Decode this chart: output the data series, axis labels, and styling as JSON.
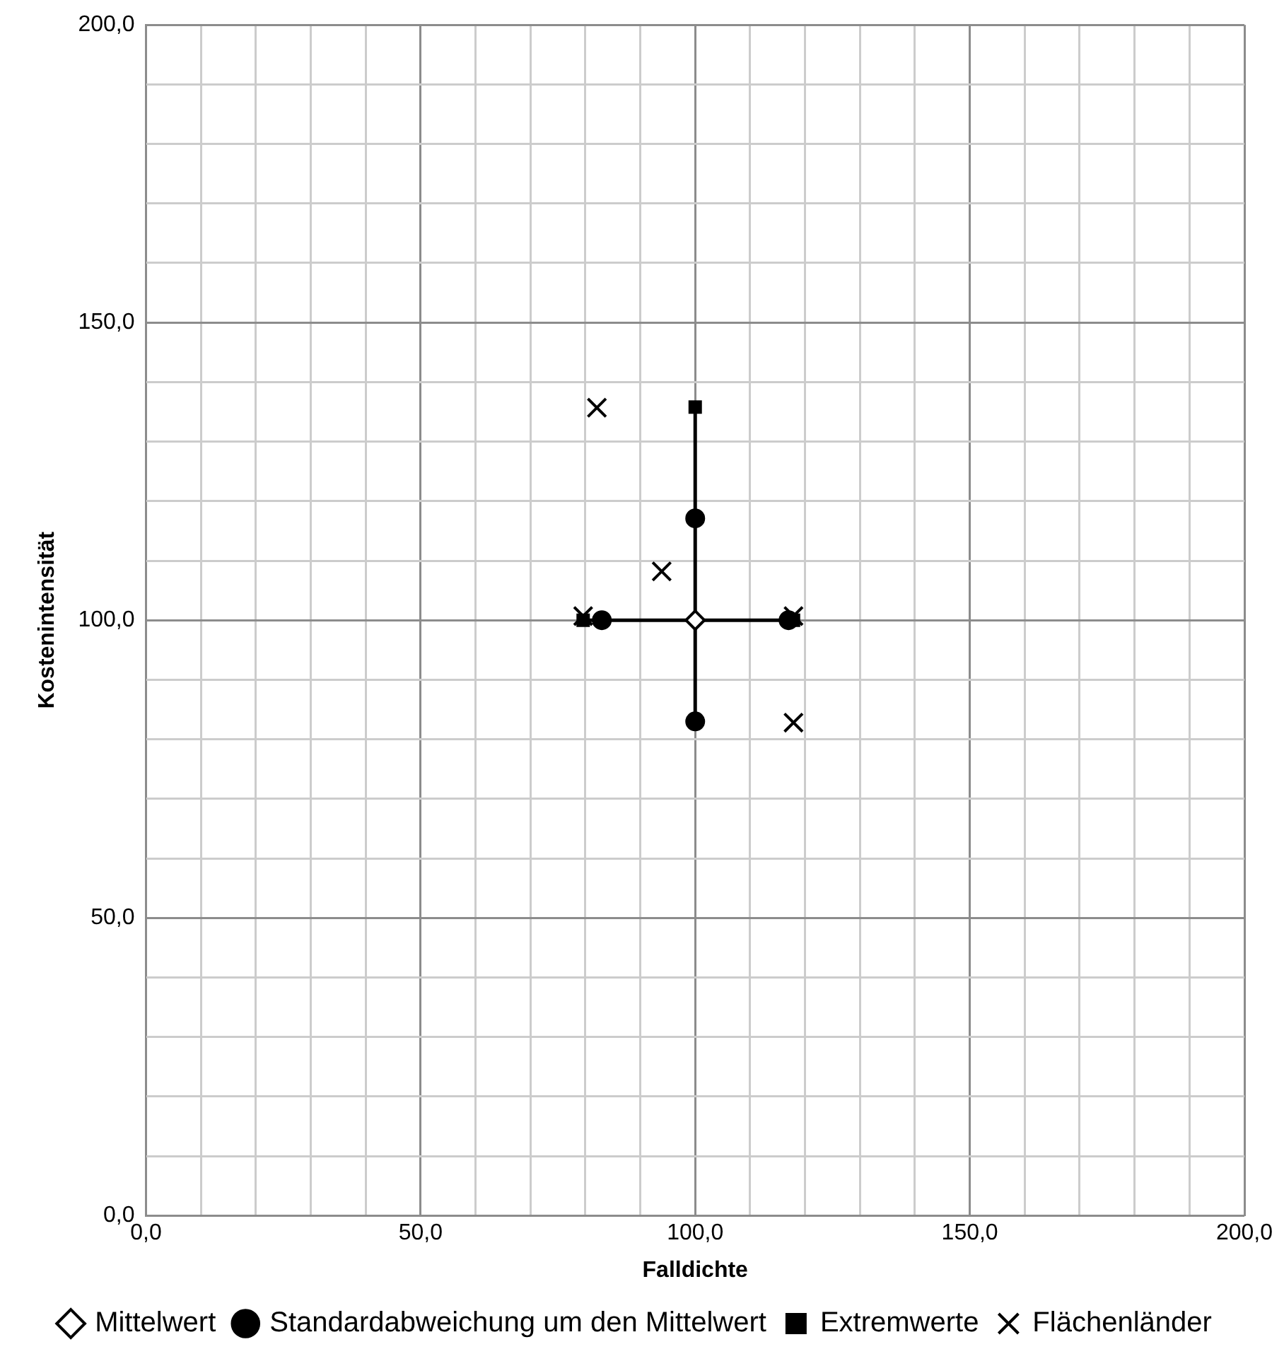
{
  "chart_data": {
    "type": "scatter",
    "xlabel": "Falldichte",
    "ylabel": "Kostenintensität",
    "xlim": [
      0,
      200
    ],
    "ylim": [
      0,
      200
    ],
    "xticks": [
      {
        "value": 0,
        "label": "0,0"
      },
      {
        "value": 10,
        "label": null
      },
      {
        "value": 20,
        "label": null
      },
      {
        "value": 30,
        "label": null
      },
      {
        "value": 40,
        "label": null
      },
      {
        "value": 50,
        "label": "50,0"
      },
      {
        "value": 60,
        "label": null
      },
      {
        "value": 70,
        "label": null
      },
      {
        "value": 80,
        "label": null
      },
      {
        "value": 90,
        "label": null
      },
      {
        "value": 100,
        "label": "100,0"
      },
      {
        "value": 110,
        "label": null
      },
      {
        "value": 120,
        "label": null
      },
      {
        "value": 130,
        "label": null
      },
      {
        "value": 140,
        "label": null
      },
      {
        "value": 150,
        "label": "150,0"
      },
      {
        "value": 160,
        "label": null
      },
      {
        "value": 170,
        "label": null
      },
      {
        "value": 180,
        "label": null
      },
      {
        "value": 190,
        "label": null
      },
      {
        "value": 200,
        "label": "200,0"
      }
    ],
    "yticks": [
      {
        "value": 0,
        "label": "0,0"
      },
      {
        "value": 10,
        "label": null
      },
      {
        "value": 20,
        "label": null
      },
      {
        "value": 30,
        "label": null
      },
      {
        "value": 40,
        "label": null
      },
      {
        "value": 50,
        "label": "50,0"
      },
      {
        "value": 60,
        "label": null
      },
      {
        "value": 70,
        "label": null
      },
      {
        "value": 80,
        "label": null
      },
      {
        "value": 90,
        "label": null
      },
      {
        "value": 100,
        "label": "100,0"
      },
      {
        "value": 110,
        "label": null
      },
      {
        "value": 120,
        "label": null
      },
      {
        "value": 130,
        "label": null
      },
      {
        "value": 140,
        "label": null
      },
      {
        "value": 150,
        "label": "150,0"
      },
      {
        "value": 160,
        "label": null
      },
      {
        "value": 170,
        "label": null
      },
      {
        "value": 180,
        "label": null
      },
      {
        "value": 190,
        "label": null
      },
      {
        "value": 200,
        "label": "200,0"
      }
    ],
    "grid": true,
    "legend": "bottom",
    "series": [
      {
        "type": "line",
        "color": "#000000",
        "marker": "none",
        "x": [
          79.6,
          117.9
        ],
        "values": [
          100,
          100
        ]
      },
      {
        "type": "line",
        "color": "#000000",
        "marker": "none",
        "x": [
          100,
          100
        ],
        "values": [
          83,
          135.8
        ]
      },
      {
        "name": "Mittelwert",
        "color": "#000000",
        "marker": "diamond",
        "x": [
          100
        ],
        "values": [
          100
        ]
      },
      {
        "name": "Standardabweichung um den Mittelwert",
        "color": "#000000",
        "marker": "circle",
        "x": [
          100,
          100,
          83,
          117
        ],
        "values": [
          117.1,
          83,
          100,
          100
        ]
      },
      {
        "name": "Extremwerte",
        "color": "#000000",
        "marker": "square",
        "x": [
          100,
          79.6,
          117.9
        ],
        "values": [
          135.8,
          100,
          100
        ]
      },
      {
        "name": "Flächenländer",
        "color": "#000000",
        "marker": "cross",
        "x": [
          82.1,
          93.9,
          79.6,
          117.9,
          117.9
        ],
        "values": [
          135.7,
          108.2,
          100.7,
          100.7,
          82.8
        ]
      }
    ]
  }
}
